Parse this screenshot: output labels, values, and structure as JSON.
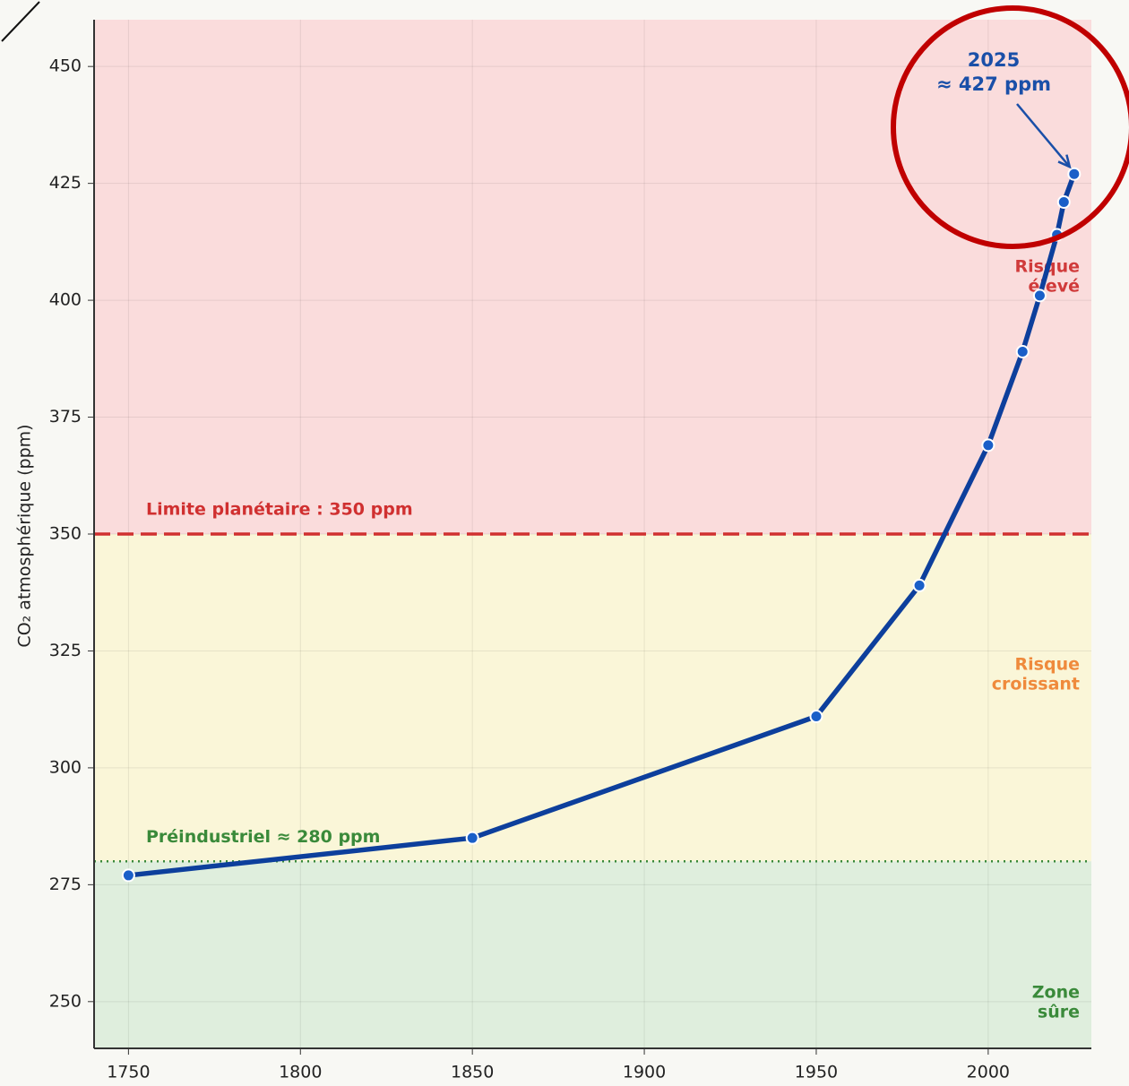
{
  "chart_data": {
    "type": "line",
    "y_label": "CO₂ atmosphérique (ppm)",
    "x": [
      1750,
      1850,
      1950,
      1980,
      2000,
      2010,
      2015,
      2020,
      2022,
      2025
    ],
    "values": [
      277,
      285,
      311,
      339,
      369,
      389,
      401,
      414,
      421,
      427
    ],
    "color": "#0d3f9c",
    "xlim": [
      1740,
      2030
    ],
    "xticks": [
      1750,
      1800,
      1850,
      1900,
      1950,
      2000
    ],
    "ylim": [
      240,
      460
    ],
    "yticks": [
      250,
      275,
      300,
      325,
      350,
      375,
      400,
      425,
      450
    ],
    "grid": true,
    "zones": [
      {
        "from": 350,
        "to": null,
        "color": "#fadcdc",
        "label_color": "#d03a3a",
        "label": [
          "Risque",
          "élevé"
        ]
      },
      {
        "from": 280,
        "to": 350,
        "color": "#faf6d8",
        "label_color": "#ef8a3c",
        "label": [
          "Risque",
          "croissant"
        ]
      },
      {
        "from": null,
        "to": 280,
        "color": "#dfeedd",
        "label_color": "#3a8a3a",
        "label": [
          "Zone",
          "sûre"
        ]
      }
    ],
    "hlines": [
      {
        "value": 350,
        "label": "Limite planétaire : 350 ppm",
        "color": "#d03030",
        "style": "dashed"
      },
      {
        "value": 280,
        "label": "Préindustriel ≈ 280 ppm",
        "color": "#3a8a3a",
        "style": "dotted"
      }
    ],
    "annotation": {
      "lines": [
        "2025",
        "≈ 427 ppm"
      ],
      "color": "#1a4fa8"
    }
  }
}
